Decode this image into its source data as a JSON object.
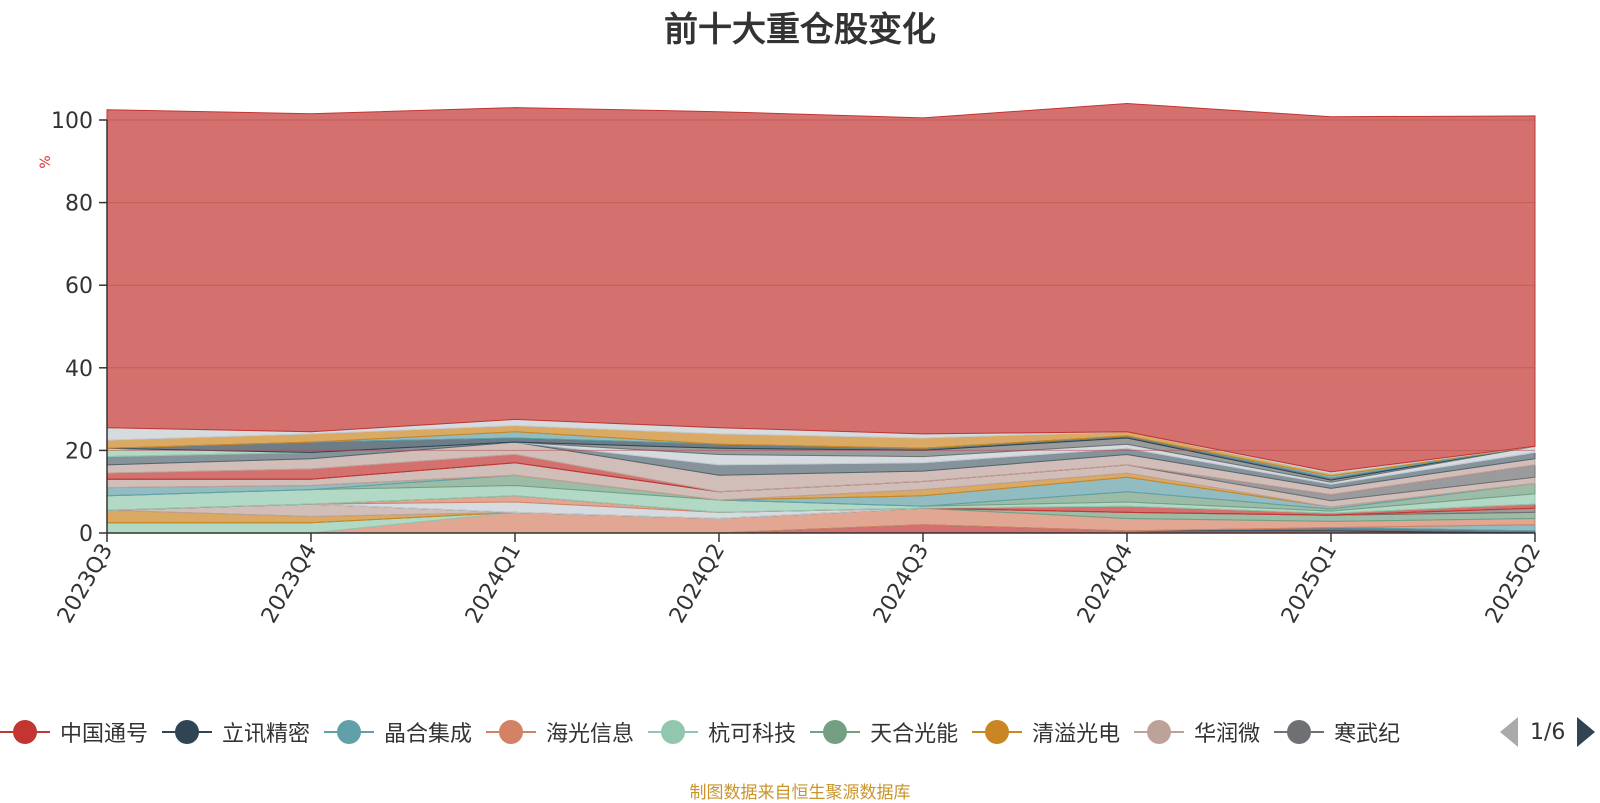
{
  "chart_data": {
    "type": "area",
    "title": "前十大重仓股变化",
    "ylabel": "%",
    "ylim": [
      0,
      100
    ],
    "yticks": [
      "0",
      "20",
      "40",
      "60",
      "80",
      "100"
    ],
    "categories": [
      "2023Q3",
      "2023Q4",
      "2024Q1",
      "2024Q2",
      "2024Q3",
      "2024Q4",
      "2025Q1",
      "2025Q2"
    ],
    "stacked": true,
    "grid": true,
    "legend_position": "bottom",
    "series": [
      {
        "name": "中国通号",
        "color": "#c23531",
        "values": [
          0,
          0,
          0,
          0,
          2.0,
          0.5,
          0.5,
          0
        ]
      },
      {
        "name": "立讯精密",
        "color": "#2f4554",
        "values": [
          0,
          0,
          0,
          0,
          0,
          0,
          0.8,
          0.5
        ]
      },
      {
        "name": "晶合集成",
        "color": "#61a0a8",
        "values": [
          0,
          0,
          0,
          0,
          0,
          0,
          0,
          1.5
        ]
      },
      {
        "name": "海光信息",
        "color": "#d48265",
        "values": [
          0,
          0,
          5.0,
          3.5,
          4.0,
          3.0,
          1.5,
          1.5
        ]
      },
      {
        "name": "杭可科技",
        "color": "#91c7ae",
        "values": [
          2.5,
          2.5,
          0,
          0,
          0,
          0,
          0,
          0
        ]
      },
      {
        "name": "天合光能",
        "color": "#749f83",
        "values": [
          0,
          0,
          0,
          0,
          0,
          1.5,
          1.5,
          1.5
        ]
      },
      {
        "name": "清溢光电",
        "color": "#ca8622",
        "values": [
          3.0,
          1.5,
          0,
          0,
          0,
          0,
          0,
          0
        ]
      },
      {
        "name": "华润微",
        "color": "#bda29a",
        "values": [
          0,
          3.0,
          0,
          0,
          0,
          0,
          0,
          0
        ]
      },
      {
        "name": "寒武纪",
        "color": "#6e7074",
        "values": [
          0,
          0,
          0,
          0,
          0,
          0,
          0,
          1.0
        ]
      },
      {
        "name": "",
        "color": "#546570",
        "values": [
          0,
          0,
          0,
          0,
          0,
          0,
          0,
          0
        ]
      },
      {
        "name": "",
        "color": "#c4ccd3",
        "values": [
          0,
          0,
          2.5,
          1.5,
          0,
          0,
          0,
          0
        ]
      },
      {
        "name": "",
        "color": "#d48265",
        "values": [
          0,
          0,
          1.5,
          0,
          0,
          0,
          0,
          0
        ]
      },
      {
        "name": "",
        "color": "#c23531",
        "values": [
          0,
          0,
          0,
          0,
          0,
          1.5,
          0.5,
          1.0
        ]
      },
      {
        "name": "",
        "color": "#91c7ae",
        "values": [
          3.5,
          3.5,
          2.5,
          3.0,
          0.5,
          1.0,
          0.5,
          2.5
        ]
      },
      {
        "name": "",
        "color": "#749f83",
        "values": [
          0,
          0,
          2.5,
          0,
          0,
          2.5,
          0.5,
          2.5
        ]
      },
      {
        "name": "",
        "color": "#61a0a8",
        "values": [
          2.0,
          1.0,
          0,
          0,
          2.5,
          3.5,
          0.5,
          0
        ]
      },
      {
        "name": "",
        "color": "#ca8622",
        "values": [
          0,
          0,
          0,
          0,
          1.5,
          1.0,
          0,
          0
        ]
      },
      {
        "name": "",
        "color": "#bda29a",
        "values": [
          2.0,
          1.5,
          3.0,
          2.0,
          2.0,
          2.0,
          1.5,
          1.5
        ]
      },
      {
        "name": "",
        "color": "#6e7074",
        "values": [
          0,
          0,
          0,
          0,
          0,
          0,
          1.5,
          3.0
        ]
      },
      {
        "name": "",
        "color": "#c23531",
        "values": [
          1.5,
          2.5,
          2.0,
          0,
          0,
          0,
          0,
          0
        ]
      },
      {
        "name": "",
        "color": "#bda29a",
        "values": [
          2.0,
          2.5,
          3.0,
          4.0,
          2.5,
          2.5,
          1.5,
          1.5
        ]
      },
      {
        "name": "",
        "color": "#546570",
        "values": [
          2.0,
          1.5,
          0,
          2.5,
          2.0,
          1.5,
          1.0,
          1.5
        ]
      },
      {
        "name": "",
        "color": "#c4ccd3",
        "values": [
          0,
          0,
          0,
          2.5,
          1.5,
          1.0,
          0.5,
          1.5
        ]
      },
      {
        "name": "",
        "color": "#6e7074",
        "values": [
          0,
          0,
          0,
          1.5,
          1.5,
          1.5,
          0.5,
          0
        ]
      },
      {
        "name": "",
        "color": "#91c7ae",
        "values": [
          2.0,
          0,
          0,
          0,
          0,
          0,
          0,
          0
        ]
      },
      {
        "name": "",
        "color": "#2f4554",
        "values": [
          0,
          2.5,
          1.0,
          1.0,
          0.5,
          0.5,
          0.5,
          0
        ]
      },
      {
        "name": "",
        "color": "#61a0a8",
        "values": [
          0,
          0,
          1.5,
          0,
          0,
          0,
          0.5,
          0
        ]
      },
      {
        "name": "",
        "color": "#ca8622",
        "values": [
          2.0,
          2.0,
          1.5,
          2.5,
          2.5,
          1.0,
          0.5,
          0
        ]
      },
      {
        "name": "",
        "color": "#c4ccd3",
        "values": [
          3.0,
          0.5,
          1.5,
          1.5,
          1.0,
          0,
          0.5,
          0
        ]
      },
      {
        "name": "",
        "color": "#c23531",
        "values": [
          77.0,
          77.0,
          75.5,
          76.5,
          76.5,
          79.5,
          86.0,
          80.0
        ]
      }
    ]
  },
  "legend": {
    "items": [
      {
        "label": "中国通号",
        "color": "#c23531"
      },
      {
        "label": "立讯精密",
        "color": "#2f4554"
      },
      {
        "label": "晶合集成",
        "color": "#61a0a8"
      },
      {
        "label": "海光信息",
        "color": "#d48265"
      },
      {
        "label": "杭可科技",
        "color": "#91c7ae"
      },
      {
        "label": "天合光能",
        "color": "#749f83"
      },
      {
        "label": "清溢光电",
        "color": "#ca8622"
      },
      {
        "label": "华润微",
        "color": "#bda29a"
      },
      {
        "label": "寒武纪",
        "color": "#6e7074"
      }
    ],
    "page_indicator": "1/6"
  },
  "source_note": "制图数据来自恒生聚源数据库"
}
